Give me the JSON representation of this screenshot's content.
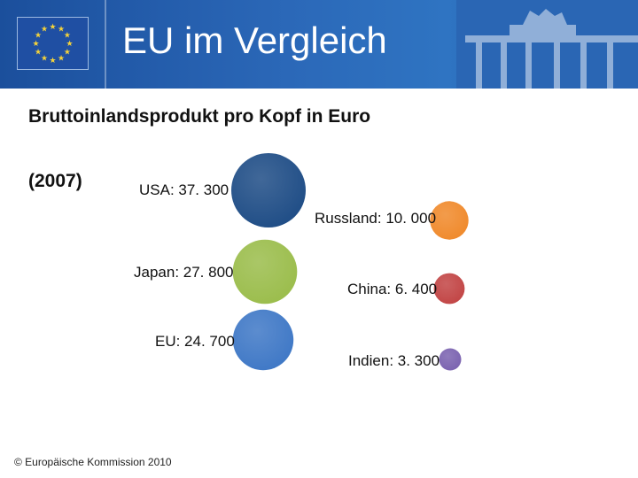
{
  "header": {
    "title": "EU im Vergleich"
  },
  "subtitle": "Bruttoinlandsprodukt pro Kopf in Euro",
  "year": "(2007)",
  "footer": "© Europäische Kommission 2010",
  "chart_data": {
    "type": "bubble",
    "title": "Bruttoinlandsprodukt pro Kopf in Euro",
    "subtitle": "(2007)",
    "unit": "Euro",
    "categories": [
      "USA",
      "Russland",
      "Japan",
      "China",
      "EU",
      "Indien"
    ],
    "values": [
      37300,
      10000,
      27800,
      6400,
      24700,
      3300
    ],
    "labels": [
      "USA: 37. 300",
      "Russland: 10. 000",
      "Japan: 27. 800",
      "China: 6. 400",
      "EU: 24. 700",
      "Indien: 3. 300"
    ],
    "colors": [
      "#1f4d86",
      "#f08a2c",
      "#9bbd4c",
      "#c24545",
      "#3f78c6",
      "#7b63b0"
    ]
  }
}
